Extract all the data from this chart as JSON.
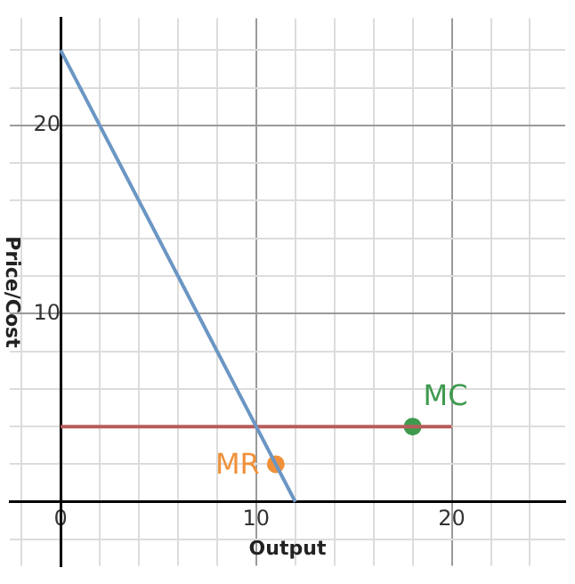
{
  "chart_data": {
    "type": "line",
    "xlabel": "Output",
    "ylabel": "Price/Cost",
    "xlim": [
      -2.6,
      25.8
    ],
    "ylim": [
      -3.4,
      25.7
    ],
    "xticks": [
      {
        "value": -2,
        "label": null
      },
      0,
      {
        "value": 2,
        "label": null
      },
      {
        "value": 4,
        "label": null
      },
      {
        "value": 6,
        "label": null
      },
      {
        "value": 8,
        "label": null
      },
      10,
      {
        "value": 12,
        "label": null
      },
      {
        "value": 14,
        "label": null
      },
      {
        "value": 16,
        "label": null
      },
      {
        "value": 18,
        "label": null
      },
      20,
      {
        "value": 22,
        "label": null
      },
      {
        "value": 24,
        "label": null
      }
    ],
    "yticks": [
      {
        "value": -2,
        "label": null
      },
      {
        "value": 0,
        "label": null
      },
      {
        "value": 2,
        "label": null
      },
      {
        "value": 4,
        "label": null
      },
      {
        "value": 6,
        "label": null
      },
      {
        "value": 8,
        "label": null
      },
      10,
      {
        "value": 12,
        "label": null
      },
      {
        "value": 14,
        "label": null
      },
      {
        "value": 16,
        "label": null
      },
      {
        "value": 18,
        "label": null
      },
      20,
      {
        "value": 22,
        "label": null
      },
      {
        "value": 24,
        "label": null
      }
    ],
    "grid": true,
    "legend": false,
    "series": [
      {
        "color": "#6b96c4",
        "x": [
          0,
          12
        ],
        "values": [
          24,
          0
        ],
        "marker": "none"
      },
      {
        "color": "#b85c5c",
        "x": [
          0,
          20
        ],
        "values": [
          4,
          4
        ],
        "marker": "none"
      },
      {
        "type": "scatter",
        "name": "MC",
        "color": "#3f9a4e",
        "x": [
          18
        ],
        "values": [
          4
        ],
        "marker": "circle"
      },
      {
        "type": "scatter",
        "name": "MR",
        "color": "#f0913a",
        "x": [
          11
        ],
        "values": [
          2
        ],
        "marker": "circle"
      }
    ]
  }
}
